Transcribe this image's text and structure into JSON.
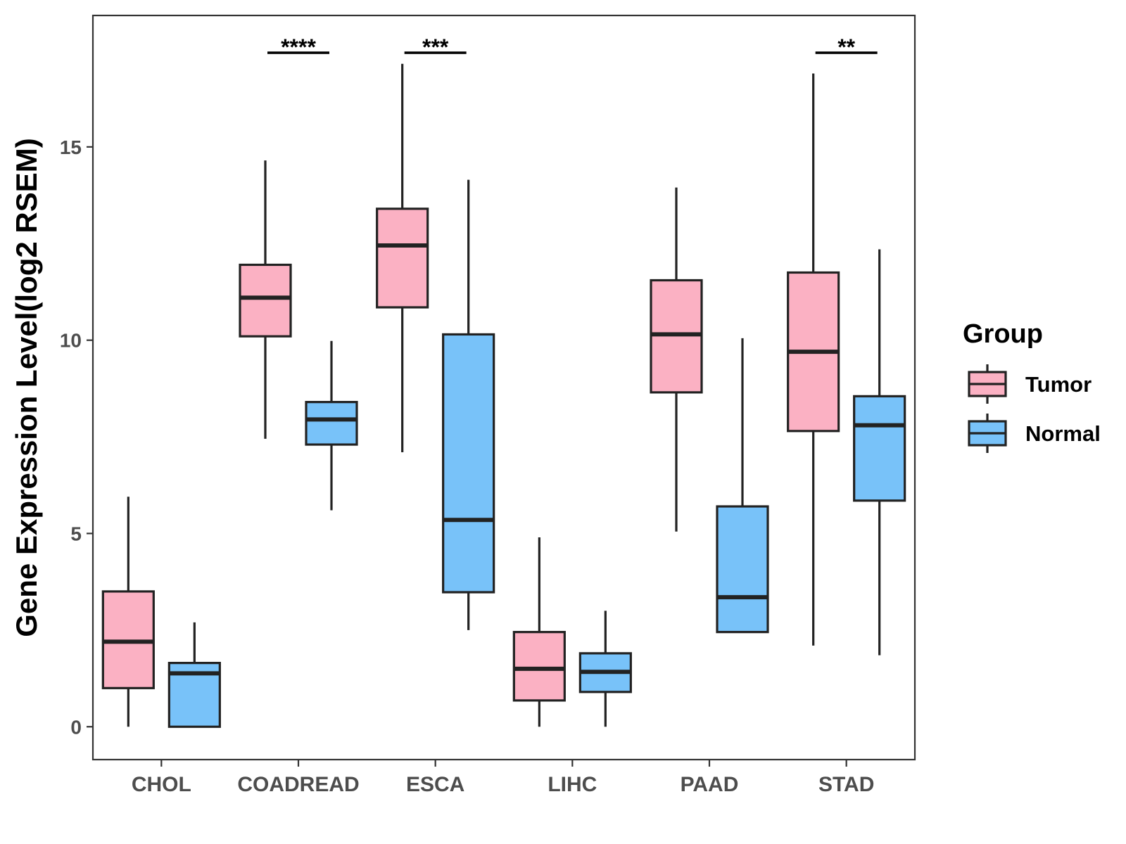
{
  "chart_data": {
    "type": "boxplot",
    "title": "",
    "xlabel": "",
    "ylabel": "Gene Expression Level(log2 RSEM)",
    "ylim": [
      -0.85,
      18.4
    ],
    "yticks": [
      0,
      5,
      10,
      15
    ],
    "categories": [
      "CHOL",
      "COADREAD",
      "ESCA",
      "LIHC",
      "PAAD",
      "STAD"
    ],
    "legend": {
      "title": "Group",
      "position": "right",
      "entries": [
        {
          "name": "Tumor",
          "color": "#FBB1C3"
        },
        {
          "name": "Normal",
          "color": "#78C2F9"
        }
      ]
    },
    "series": [
      {
        "name": "Tumor",
        "color": "#FBB1C3",
        "boxes": [
          {
            "min": 0.0,
            "q1": 1.0,
            "median": 2.2,
            "q3": 3.5,
            "max": 5.95
          },
          {
            "min": 7.45,
            "q1": 10.1,
            "median": 11.1,
            "q3": 11.95,
            "max": 14.65
          },
          {
            "min": 7.1,
            "q1": 10.85,
            "median": 12.45,
            "q3": 13.4,
            "max": 17.15
          },
          {
            "min": 0.0,
            "q1": 0.68,
            "median": 1.5,
            "q3": 2.45,
            "max": 4.9
          },
          {
            "min": 5.05,
            "q1": 8.65,
            "median": 10.15,
            "q3": 11.55,
            "max": 13.95
          },
          {
            "min": 2.1,
            "q1": 7.65,
            "median": 9.7,
            "q3": 11.75,
            "max": 16.9
          }
        ]
      },
      {
        "name": "Normal",
        "color": "#78C2F9",
        "boxes": [
          {
            "min": 0.0,
            "q1": 0.0,
            "median": 1.38,
            "q3": 1.65,
            "max": 2.7
          },
          {
            "min": 5.6,
            "q1": 7.3,
            "median": 7.95,
            "q3": 8.4,
            "max": 9.98
          },
          {
            "min": 2.5,
            "q1": 3.48,
            "median": 5.35,
            "q3": 10.15,
            "max": 14.15
          },
          {
            "min": 0.0,
            "q1": 0.9,
            "median": 1.42,
            "q3": 1.9,
            "max": 3.0
          },
          {
            "min": 2.45,
            "q1": 2.45,
            "median": 3.35,
            "q3": 5.7,
            "max": 10.05
          },
          {
            "min": 1.85,
            "q1": 5.85,
            "median": 7.8,
            "q3": 8.55,
            "max": 12.35
          }
        ]
      }
    ],
    "significance": [
      {
        "category": "COADREAD",
        "label": "****"
      },
      {
        "category": "ESCA",
        "label": "***"
      },
      {
        "category": "STAD",
        "label": "**"
      }
    ]
  }
}
